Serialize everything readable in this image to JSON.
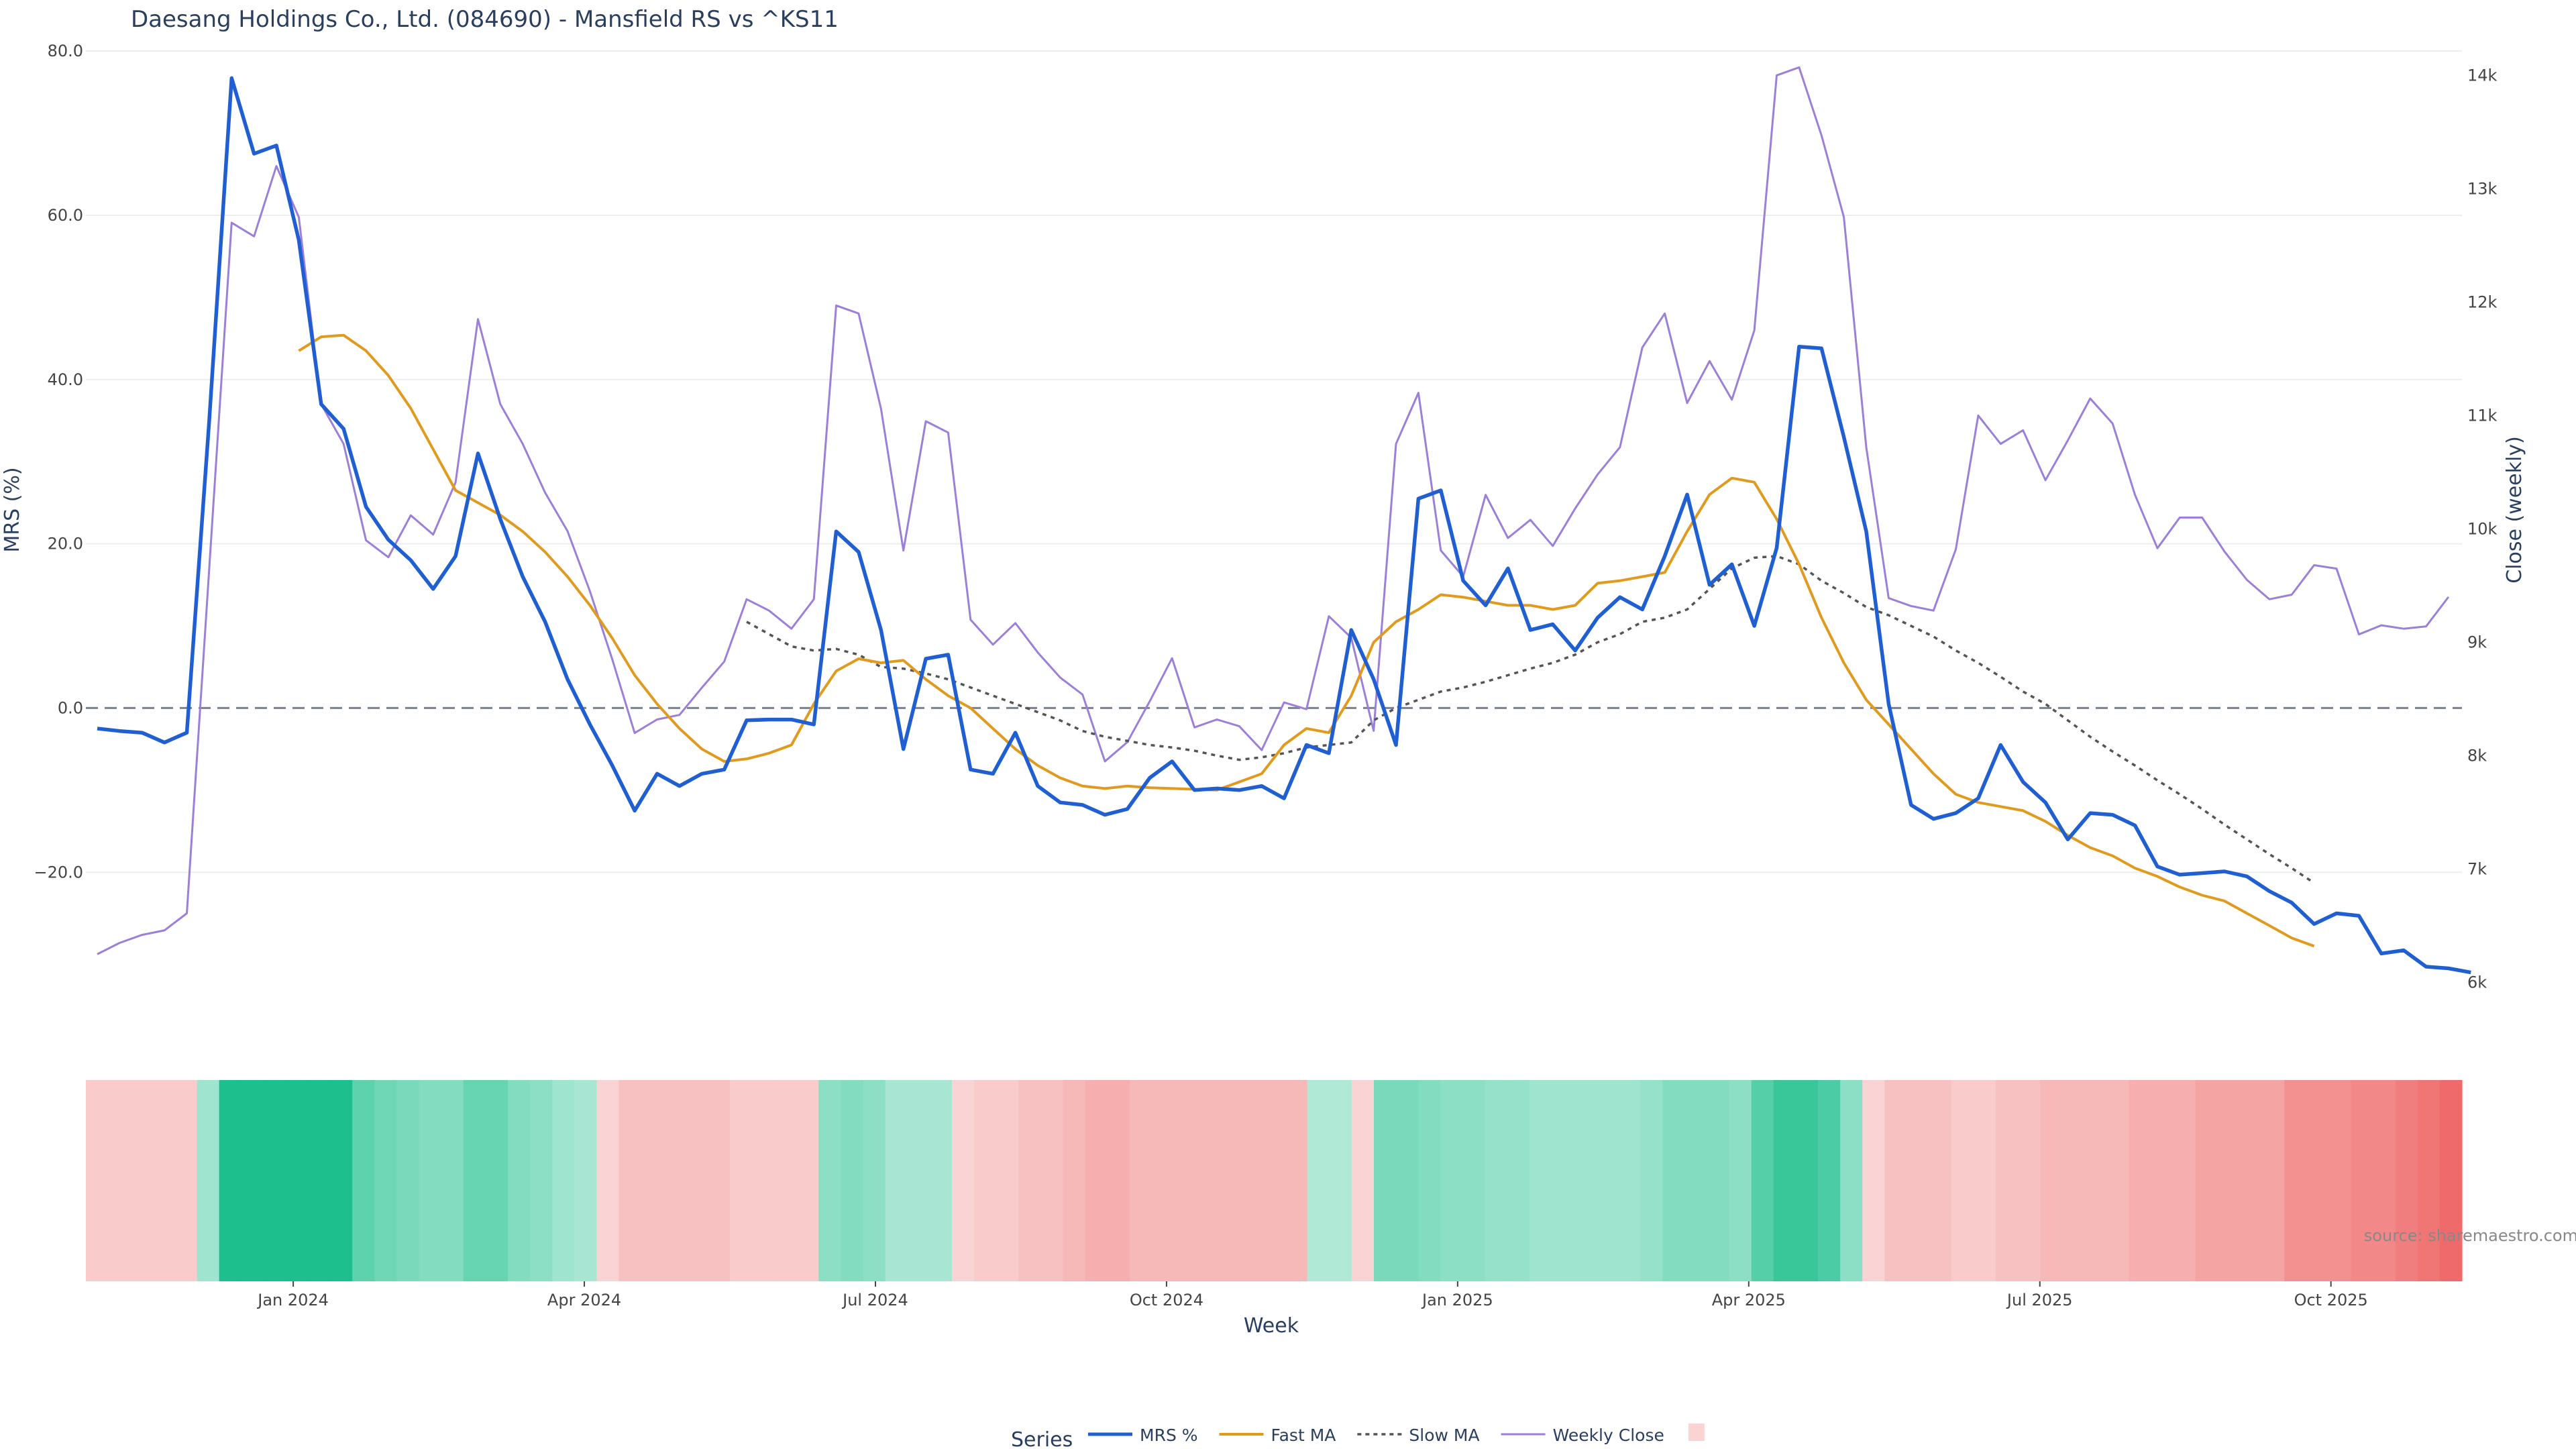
{
  "chart_data": {
    "type": "line",
    "title": "Daesang Holdings Co., Ltd. (084690) - Mansfield RS vs ^KS11",
    "ylabel": "MRS (%)",
    "y2label": "Close (weekly)",
    "xlabel": "Week",
    "ylim": [
      -35.5,
      80.5
    ],
    "y2lim": [
      5850,
      14250
    ],
    "y_ticks": [
      "80.0",
      "60.0",
      "40.0",
      "20.0",
      "0.0",
      "−20.0"
    ],
    "y_tick_values": [
      80,
      60,
      40,
      20,
      0,
      -20
    ],
    "y2_ticks": [
      "14k",
      "13k",
      "12k",
      "11k",
      "10k",
      "9k",
      "8k",
      "7k",
      "6k"
    ],
    "y2_tick_values": [
      14000,
      13000,
      12000,
      11000,
      10000,
      9000,
      8000,
      7000,
      6000
    ],
    "x_ticks": [
      "Jan 2024",
      "Apr 2024",
      "Jul 2024",
      "Oct 2024",
      "Jan 2025",
      "Apr 2025",
      "Jul 2025",
      "Oct 2025"
    ],
    "x_tick_weeks": [
      9.5,
      22.5,
      35.5,
      48.5,
      61.5,
      74.5,
      87.5,
      100.5
    ],
    "grid": true,
    "zero_line": true,
    "legend": {
      "title": "Series",
      "placement": "bottom-center",
      "items": [
        {
          "label": "MRS %",
          "style": "solid-blue"
        },
        {
          "label": "Fast MA",
          "style": "solid-orange"
        },
        {
          "label": "Slow MA",
          "style": "dotted-gray"
        },
        {
          "label": "Weekly Close",
          "style": "solid-purple"
        },
        {
          "label": "",
          "style": "swatch"
        }
      ]
    },
    "series": [
      {
        "name": "MRS %",
        "axis": "left",
        "start_week": 0,
        "values": [
          -2.5,
          -2.8,
          -3.0,
          -4.2,
          -3.0,
          35.0,
          76.7,
          67.5,
          68.5,
          57.0,
          37.0,
          34.0,
          24.5,
          20.5,
          18.0,
          14.5,
          18.5,
          31.0,
          23.0,
          16.0,
          10.5,
          3.5,
          -2.0,
          -7.0,
          -12.5,
          -8.0,
          -9.5,
          -8.0,
          -7.5,
          -1.5,
          -1.4,
          -1.4,
          -2.0,
          21.5,
          19.0,
          9.5,
          -5.0,
          6.0,
          6.5,
          -7.5,
          -8.0,
          -3.0,
          -9.5,
          -11.5,
          -11.8,
          -13.0,
          -12.3,
          -8.5,
          -6.5,
          -10.0,
          -9.8,
          -10.0,
          -9.5,
          -11.0,
          -4.5,
          -5.5,
          9.5,
          3.5,
          -4.5,
          25.5,
          26.5,
          15.5,
          12.5,
          17.0,
          9.5,
          10.2,
          7.0,
          11.0,
          13.5,
          12.0,
          18.5,
          26.0,
          15.0,
          17.5,
          10.0,
          19.5,
          44.0,
          43.8,
          33.0,
          21.5,
          0.5,
          -11.8,
          -13.5,
          -12.8,
          -11.0,
          -4.5,
          -9.0,
          -11.5,
          -16.0,
          -12.8,
          -13.0,
          -14.3,
          -19.3,
          -20.3,
          -20.1,
          -19.9,
          -20.5,
          -22.3,
          -23.7,
          -26.3,
          -25.0,
          -25.3,
          -29.9,
          -29.5,
          -31.5,
          -31.7,
          -32.2
        ]
      },
      {
        "name": "Fast MA",
        "axis": "left",
        "start_week": 9,
        "values": [
          43.5,
          45.2,
          45.4,
          43.5,
          40.5,
          36.5,
          31.5,
          26.5,
          25.0,
          23.5,
          21.5,
          19.0,
          16.0,
          12.5,
          8.5,
          4.0,
          0.5,
          -2.5,
          -5.0,
          -6.5,
          -6.2,
          -5.5,
          -4.5,
          0.5,
          4.5,
          6.0,
          5.5,
          5.8,
          3.5,
          1.5,
          0.0,
          -2.5,
          -5.0,
          -7.0,
          -8.5,
          -9.5,
          -9.8,
          -9.5,
          -9.7,
          -9.8,
          -9.9,
          -10.0,
          -9.0,
          -8.0,
          -4.5,
          -2.5,
          -3.0,
          1.5,
          8.0,
          10.5,
          12.0,
          13.8,
          13.5,
          13.0,
          12.5,
          12.5,
          12.0,
          12.5,
          15.2,
          15.5,
          16.0,
          16.5,
          21.5,
          26.0,
          28.0,
          27.5,
          23.0,
          17.5,
          11.0,
          5.5,
          1.0,
          -2.0,
          -5.0,
          -8.0,
          -10.5,
          -11.5,
          -12.0,
          -12.5,
          -13.8,
          -15.5,
          -17.0,
          -18.0,
          -19.5,
          -20.5,
          -21.8,
          -22.8,
          -23.5,
          -25.0,
          -26.5,
          -28.0,
          -29.0
        ]
      },
      {
        "name": "Slow MA",
        "axis": "left",
        "start_week": 29,
        "values": [
          10.5,
          9.0,
          7.5,
          7.0,
          7.2,
          6.5,
          5.0,
          4.8,
          4.2,
          3.5,
          2.5,
          1.5,
          0.5,
          -0.5,
          -1.5,
          -2.8,
          -3.5,
          -4.0,
          -4.5,
          -4.8,
          -5.2,
          -5.8,
          -6.3,
          -6.0,
          -5.5,
          -4.8,
          -4.5,
          -4.2,
          -1.5,
          0.0,
          1.0,
          2.0,
          2.5,
          3.2,
          4.0,
          4.8,
          5.5,
          6.5,
          8.0,
          9.0,
          10.5,
          11.0,
          12.0,
          14.5,
          17.0,
          18.3,
          18.5,
          17.5,
          15.5,
          14.0,
          12.3,
          11.3,
          10.0,
          8.7,
          7.0,
          5.5,
          3.8,
          2.0,
          0.5,
          -1.5,
          -3.5,
          -5.3,
          -7.0,
          -8.8,
          -10.5,
          -12.3,
          -14.2,
          -16.0,
          -17.8,
          -19.5,
          -21.3
        ]
      },
      {
        "name": "Weekly Close",
        "axis": "right",
        "start_week": 0,
        "values": [
          6250,
          6350,
          6420,
          6460,
          6610,
          9650,
          12700,
          12580,
          13200,
          12750,
          11100,
          10750,
          9900,
          9750,
          10120,
          9950,
          10410,
          11850,
          11100,
          10750,
          10320,
          9980,
          9450,
          8850,
          8200,
          8320,
          8360,
          8600,
          8830,
          9380,
          9280,
          9120,
          9380,
          11970,
          11900,
          11060,
          9810,
          10950,
          10850,
          9200,
          8980,
          9170,
          8910,
          8690,
          8540,
          7950,
          8120,
          8480,
          8860,
          8250,
          8320,
          8260,
          8050,
          8470,
          8410,
          9230,
          9040,
          8220,
          10750,
          11200,
          9810,
          9580,
          10300,
          9920,
          10080,
          9850,
          10180,
          10480,
          10720,
          11600,
          11900,
          11110,
          11480,
          11140,
          11750,
          14000,
          14070,
          13470,
          12750,
          10720,
          9390,
          9320,
          9280,
          9820,
          11000,
          10750,
          10870,
          10430,
          10780,
          11150,
          10930,
          10300,
          9830,
          10100,
          10100,
          9800,
          9550,
          9380,
          9420,
          9680,
          9650,
          9070,
          9150,
          9120,
          9140,
          9400
        ]
      }
    ],
    "heatmap_label": "",
    "heatmap_values": [
      -1.5,
      -1.5,
      -1.5,
      -1.5,
      -1.5,
      3.0,
      10.0,
      10.0,
      10.0,
      10.0,
      10.0,
      10.0,
      6.5,
      5.5,
      5.0,
      4.5,
      4.5,
      6.0,
      6.0,
      4.5,
      4.0,
      3.0,
      2.5,
      -1.0,
      -2.0,
      -2.0,
      -2.0,
      -2.0,
      -2.0,
      -1.5,
      -1.5,
      -1.5,
      -1.5,
      4.0,
      4.5,
      4.0,
      2.5,
      2.5,
      2.5,
      -1.0,
      -1.5,
      -1.5,
      -2.0,
      -2.0,
      -2.5,
      -3.0,
      -3.0,
      -2.5,
      -2.5,
      -2.5,
      -2.5,
      -2.5,
      -2.5,
      -2.5,
      -2.5,
      2.0,
      2.0,
      -1.0,
      5.0,
      5.0,
      4.5,
      4.0,
      4.0,
      3.5,
      3.5,
      3.0,
      3.0,
      3.0,
      3.0,
      3.0,
      3.5,
      4.5,
      4.5,
      4.5,
      4.0,
      7.0,
      8.5,
      8.5,
      7.5,
      4.0,
      -1.0,
      -2.0,
      -2.0,
      -2.0,
      -1.5,
      -1.5,
      -2.0,
      -2.0,
      -2.5,
      -2.5,
      -2.5,
      -2.5,
      -3.0,
      -3.0,
      -3.0,
      -3.5,
      -3.5,
      -3.5,
      -3.5,
      -4.5,
      -4.5,
      -4.5,
      -5.0,
      -5.0,
      -5.5,
      -6.0,
      -6.5
    ]
  },
  "source_label": "source: sharemaestro.com",
  "colors": {
    "mrs": "#1f5fd1",
    "fast_ma": "#e09b1f",
    "slow_ma": "#555555",
    "close": "#9b7fd8",
    "zero_line": "#7a8190",
    "grid": "#ebedf0",
    "heat_positive": "#1dbf8c",
    "heat_negative": "#ef6b6b"
  }
}
